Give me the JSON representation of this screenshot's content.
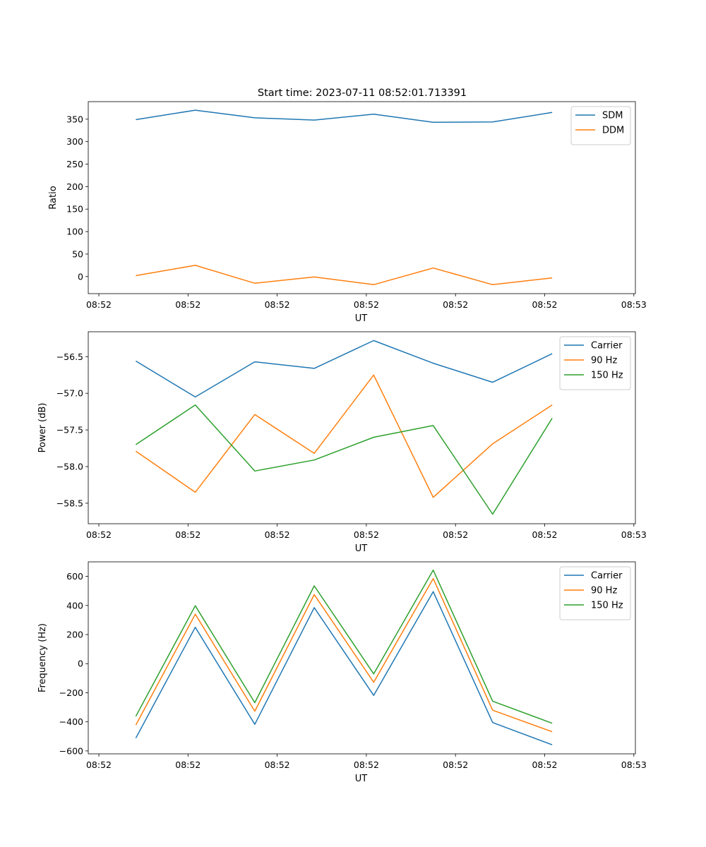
{
  "figure": {
    "title": "Start time: 2023-07-11 08:52:01.713391",
    "xtick_labels": [
      "08:52",
      "08:52",
      "08:52",
      "08:52",
      "08:52",
      "08:52",
      "08:53"
    ]
  },
  "chart_data": [
    {
      "type": "line",
      "title": "Start time: 2023-07-11 08:52:01.713391",
      "xlabel": "UT",
      "ylabel": "Ratio",
      "x": [
        1,
        2,
        3,
        4,
        5,
        6,
        7,
        8
      ],
      "xlim": [
        0.2,
        9.4
      ],
      "ylim": [
        -38,
        389
      ],
      "yticks": [
        0,
        50,
        100,
        150,
        200,
        250,
        300,
        350
      ],
      "ytick_labels": [
        "0",
        "50",
        "100",
        "150",
        "200",
        "250",
        "300",
        "350"
      ],
      "legend": "top-right",
      "series": [
        {
          "name": "SDM",
          "color": "#1f77b4",
          "values": [
            349,
            370,
            353,
            348,
            361,
            343,
            344,
            365
          ]
        },
        {
          "name": "DDM",
          "color": "#ff7f0e",
          "values": [
            2,
            25,
            -15,
            -1,
            -18,
            19,
            -18,
            -3
          ]
        }
      ]
    },
    {
      "type": "line",
      "title": "",
      "xlabel": "UT",
      "ylabel": "Power (dB)",
      "x": [
        1,
        2,
        3,
        4,
        5,
        6,
        7,
        8
      ],
      "xlim": [
        0.2,
        9.4
      ],
      "ylim": [
        -58.78,
        -56.16
      ],
      "yticks": [
        -58.5,
        -58.0,
        -57.5,
        -57.0,
        -56.5
      ],
      "ytick_labels": [
        "−58.5",
        "−58.0",
        "−57.5",
        "−57.0",
        "−56.5"
      ],
      "legend": "top-right",
      "series": [
        {
          "name": "Carrier",
          "color": "#1f77b4",
          "values": [
            -56.56,
            -57.05,
            -56.57,
            -56.66,
            -56.28,
            -56.59,
            -56.85,
            -56.46
          ]
        },
        {
          "name": "90 Hz",
          "color": "#ff7f0e",
          "values": [
            -57.79,
            -58.35,
            -57.29,
            -57.82,
            -56.75,
            -58.42,
            -57.69,
            -57.16
          ]
        },
        {
          "name": "150 Hz",
          "color": "#2ca02c",
          "values": [
            -57.7,
            -57.16,
            -58.06,
            -57.91,
            -57.6,
            -57.44,
            -58.65,
            -57.34
          ]
        }
      ]
    },
    {
      "type": "line",
      "title": "",
      "xlabel": "UT",
      "ylabel": "Frequency (Hz)",
      "x": [
        1,
        2,
        3,
        4,
        5,
        6,
        7,
        8
      ],
      "xlim": [
        0.2,
        9.4
      ],
      "ylim": [
        -620,
        700
      ],
      "yticks": [
        -600,
        -400,
        -200,
        0,
        200,
        400,
        600
      ],
      "ytick_labels": [
        "−600",
        "−400",
        "−200",
        "0",
        "200",
        "400",
        "600"
      ],
      "legend": "top-right",
      "series": [
        {
          "name": "Carrier",
          "color": "#1f77b4",
          "values": [
            -512,
            250,
            -417,
            385,
            -218,
            495,
            -405,
            -558
          ]
        },
        {
          "name": "90 Hz",
          "color": "#ff7f0e",
          "values": [
            -422,
            340,
            -327,
            475,
            -128,
            585,
            -320,
            -468
          ]
        },
        {
          "name": "150 Hz",
          "color": "#2ca02c",
          "values": [
            -362,
            398,
            -268,
            535,
            -70,
            643,
            -258,
            -410
          ]
        }
      ]
    }
  ]
}
